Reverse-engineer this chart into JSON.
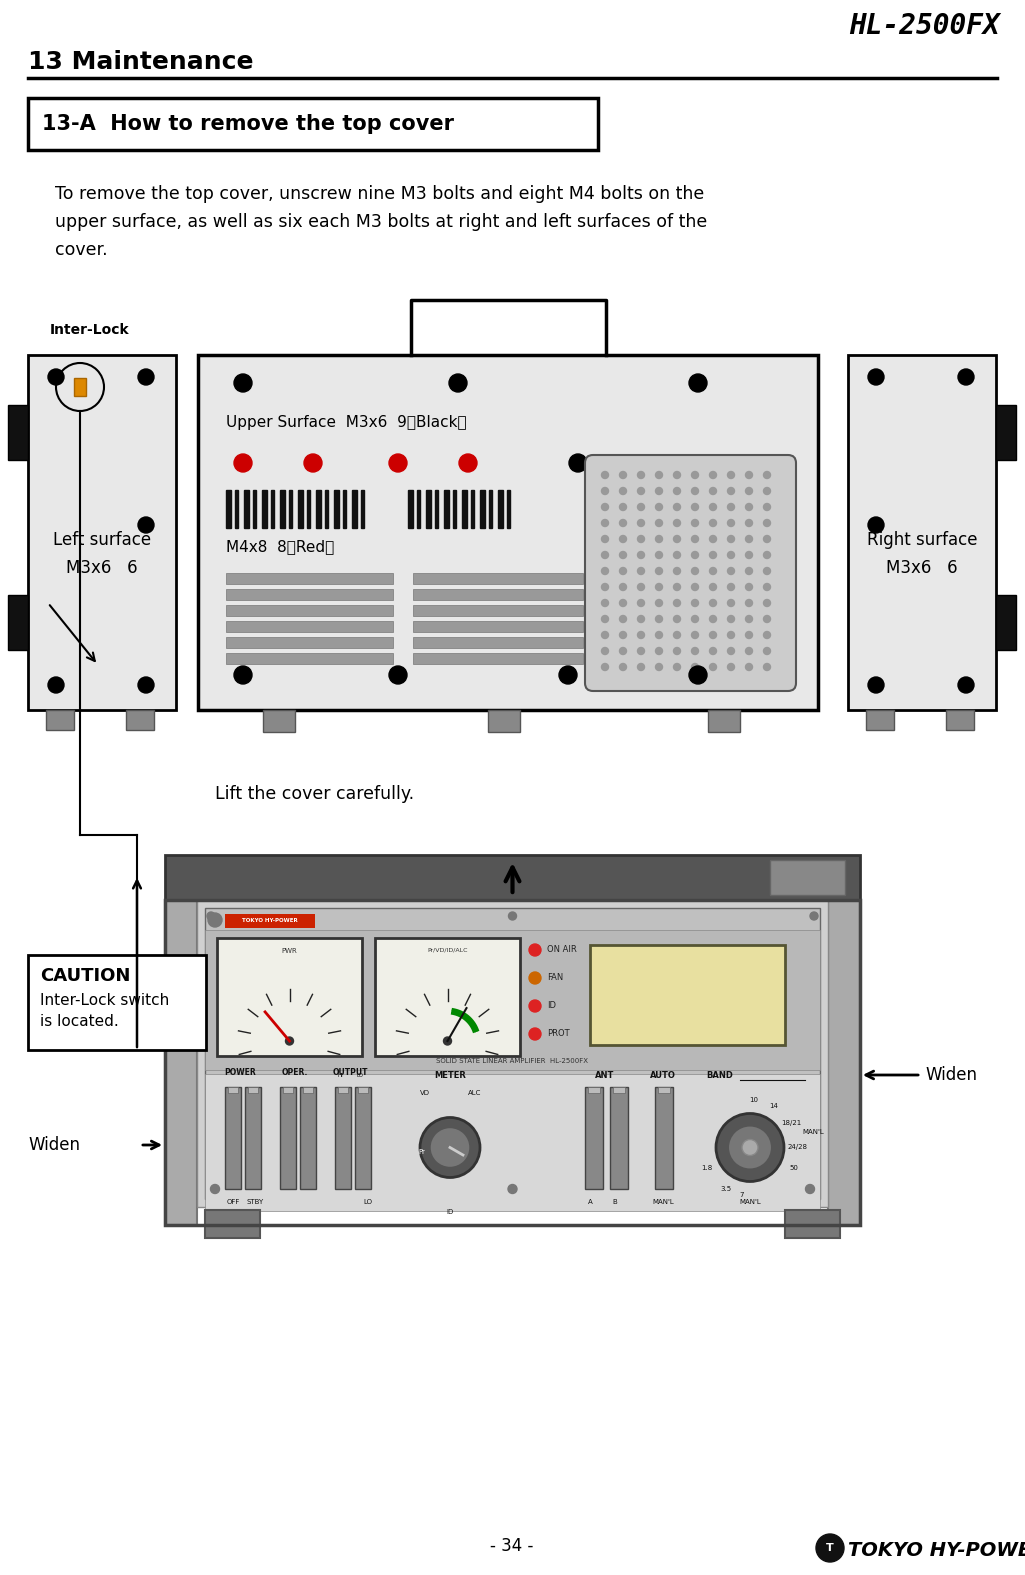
{
  "page_title": "13 Maintenance",
  "model": "HL-2500FX",
  "section_title": "13-A  How to remove the top cover",
  "body_text": "To remove the top cover, unscrew nine M3 bolts and eight M4 bolts on the\nupper surface, as well as six each M3 bolts at right and left surfaces of the\ncover.",
  "upper_surface_label": "Upper Surface  M3x6  9（Black）",
  "m4_label": "M4x8  8（Red）",
  "left_label": "Left surface",
  "left_bolt_label": "M3x6   6",
  "right_label": "Right surface",
  "right_bolt_label": "M3x6   6",
  "lift_text": "Lift the cover carefully.",
  "caution_title": "CAUTION",
  "caution_text": "Inter-Lock switch\nis located.",
  "interlock_label": "Inter-Lock",
  "widen_left": "Widen",
  "widen_right": "Widen",
  "page_number": "- 34 -",
  "bg_color": "#ffffff",
  "panel_bg": "#e0e0e0",
  "black": "#000000",
  "red_bolt": "#cc0000",
  "amp_top_color": "#555555",
  "amp_body_color": "#aaaaaa",
  "amp_front_color": "#c8c8c8"
}
